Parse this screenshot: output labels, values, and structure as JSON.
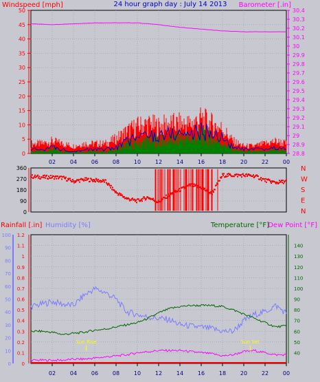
{
  "title": "24 hour graph day : July 14 2013",
  "colors": {
    "background": "#c8c8d0",
    "grid": "#9a9aa4",
    "windspeed": "#ff0000",
    "windgust_avg": "#0000cc",
    "windavg": "#008000",
    "barometer": "#ff00ff",
    "direction": "#ff0000",
    "rain": "#ff0000",
    "humidity": "#7b7bff",
    "temperature": "#006400",
    "dewpoint": "#ff00ff",
    "sun": "#ffff00",
    "axis_blue": "#0000ff"
  },
  "chart_data": [
    {
      "type": "line",
      "panel": "wind-barometer",
      "ylabel_left": "Windspeed [mph]",
      "ylabel_right": "Barometer [.in]",
      "ylim_left": [
        0,
        50
      ],
      "ylim_right": [
        28.8,
        30.4
      ],
      "ticks_left": [
        "0",
        "5",
        "10",
        "15",
        "20",
        "25",
        "30",
        "35",
        "40",
        "45",
        "50"
      ],
      "ticks_right": [
        "28.8",
        "28.9",
        "29",
        "29.1",
        "29.2",
        "29.3",
        "29.4",
        "29.5",
        "29.6",
        "29.7",
        "29.8",
        "29.9",
        "30",
        "30.1",
        "30.2",
        "30.3",
        "30.4"
      ],
      "x_ticks": [
        "02",
        "04",
        "06",
        "08",
        "10",
        "12",
        "14",
        "16",
        "18",
        "20",
        "22",
        "00"
      ],
      "x_range_hours": [
        0,
        24
      ],
      "series": [
        {
          "name": "Windspeed",
          "axis": "left",
          "color": "windspeed",
          "x": [
            0,
            1,
            2,
            3,
            4,
            5,
            6,
            7,
            8,
            9,
            10,
            11,
            12,
            13,
            14,
            15,
            16,
            17,
            18,
            19,
            20,
            21,
            22,
            23,
            24
          ],
          "values": [
            2,
            2,
            3,
            2,
            1,
            2,
            2,
            2,
            3,
            6,
            8,
            9,
            9,
            10,
            10,
            10,
            11,
            10,
            8,
            3,
            2,
            2,
            2,
            3,
            2
          ]
        },
        {
          "name": "Gust",
          "axis": "left",
          "color": "windspeed",
          "x": [
            0,
            1,
            2,
            3,
            4,
            5,
            6,
            7,
            8,
            9,
            10,
            11,
            12,
            13,
            14,
            15,
            16,
            17,
            18,
            19,
            20,
            21,
            22,
            23,
            24
          ],
          "values": [
            4,
            4,
            5,
            4,
            3,
            4,
            4,
            4,
            6,
            9,
            11,
            12,
            11,
            12,
            12,
            12,
            14,
            12,
            10,
            5,
            3,
            3,
            4,
            5,
            4
          ]
        },
        {
          "name": "Average",
          "axis": "left",
          "color": "windgust_avg",
          "x": [
            0,
            1,
            2,
            3,
            4,
            5,
            6,
            7,
            8,
            9,
            10,
            11,
            12,
            13,
            14,
            15,
            16,
            17,
            18,
            19,
            20,
            21,
            22,
            23,
            24
          ],
          "values": [
            1,
            1,
            2,
            1,
            1,
            1,
            1,
            1,
            2,
            4,
            5,
            6,
            6,
            6,
            7,
            7,
            8,
            7,
            5,
            2,
            1,
            1,
            1,
            2,
            1
          ]
        },
        {
          "name": "Barometer",
          "axis": "right",
          "color": "barometer",
          "x": [
            0,
            2,
            4,
            6,
            8,
            10,
            12,
            14,
            16,
            18,
            20,
            22,
            24
          ],
          "values": [
            30.25,
            30.24,
            30.25,
            30.26,
            30.26,
            30.26,
            30.24,
            30.21,
            30.19,
            30.17,
            30.16,
            30.16,
            30.16
          ]
        }
      ]
    },
    {
      "type": "scatter",
      "panel": "wind-direction",
      "ylim": [
        0,
        360
      ],
      "ticks_left": [
        "0",
        "90",
        "180",
        "270",
        "360"
      ],
      "ticks_right": [
        "N",
        "W",
        "S",
        "E",
        "N"
      ],
      "x_range_hours": [
        0,
        24
      ],
      "series": [
        {
          "name": "Direction",
          "color": "direction",
          "x": [
            0,
            1,
            2,
            3,
            4,
            5,
            6,
            7,
            8,
            9,
            10,
            11,
            12,
            13,
            14,
            15,
            16,
            17,
            18,
            19,
            20,
            21,
            22,
            23,
            24
          ],
          "values": [
            290,
            285,
            285,
            280,
            250,
            265,
            260,
            250,
            160,
            110,
            90,
            120,
            80,
            140,
            180,
            220,
            200,
            150,
            300,
            300,
            300,
            295,
            260,
            240,
            250
          ]
        }
      ]
    },
    {
      "type": "line",
      "panel": "rain-humidity-temperature",
      "ylabel_left_1": "Rainfall [.in]",
      "ylabel_left_2": "Humidity [%]",
      "ylabel_right_1": "Temperature [°F]",
      "ylabel_right_2": "Dew Point [°F]",
      "ylim_rain": [
        0,
        1.2
      ],
      "ylim_humidity": [
        0,
        100
      ],
      "ylim_temperature": [
        30,
        150
      ],
      "ticks_rain": [
        "0",
        "0.1",
        "0.2",
        "0.3",
        "0.4",
        "0.5",
        "0.6",
        "0.7",
        "0.8",
        "0.9",
        "1",
        "1.1",
        "1.2"
      ],
      "ticks_humidity": [
        "0",
        "10",
        "20",
        "30",
        "40",
        "50",
        "60",
        "70",
        "80",
        "90",
        "100"
      ],
      "ticks_temperature": [
        "40",
        "50",
        "60",
        "70",
        "80",
        "90",
        "100",
        "110",
        "120",
        "130",
        "140"
      ],
      "x_ticks": [
        "02",
        "04",
        "06",
        "08",
        "10",
        "12",
        "14",
        "16",
        "18",
        "20",
        "22",
        "00"
      ],
      "x_range_hours": [
        0,
        24
      ],
      "annotations": [
        {
          "label": "Sun Rise",
          "hour": 5.2
        },
        {
          "label": "Sun Set",
          "hour": 20.6
        }
      ],
      "series": [
        {
          "name": "Humidity",
          "axis": "humidity",
          "color": "humidity",
          "x": [
            0,
            1,
            2,
            3,
            4,
            5,
            6,
            7,
            8,
            9,
            10,
            11,
            12,
            13,
            14,
            15,
            16,
            17,
            18,
            19,
            20,
            21,
            22,
            23,
            24
          ],
          "values": [
            44,
            46,
            48,
            46,
            45,
            53,
            58,
            55,
            50,
            40,
            38,
            36,
            35,
            34,
            30,
            29,
            28,
            27,
            25,
            25,
            33,
            38,
            40,
            45,
            39
          ]
        },
        {
          "name": "Temperature",
          "axis": "temperature",
          "color": "temperature",
          "x": [
            0,
            1,
            2,
            3,
            4,
            5,
            6,
            7,
            8,
            9,
            10,
            11,
            12,
            13,
            14,
            15,
            16,
            17,
            18,
            19,
            20,
            21,
            22,
            23,
            24
          ],
          "values": [
            60,
            60,
            59,
            57,
            58,
            59,
            61,
            62,
            64,
            66,
            68,
            72,
            77,
            81,
            83,
            84,
            84,
            84,
            83,
            80,
            76,
            72,
            68,
            64,
            65
          ]
        },
        {
          "name": "Dew Point",
          "axis": "temperature",
          "color": "dewpoint",
          "x": [
            0,
            1,
            2,
            3,
            4,
            5,
            6,
            7,
            8,
            9,
            10,
            11,
            12,
            13,
            14,
            15,
            16,
            17,
            18,
            19,
            20,
            21,
            22,
            23,
            24
          ],
          "values": [
            33,
            33,
            33,
            33,
            34,
            34,
            35,
            36,
            37,
            38,
            40,
            41,
            42,
            42,
            42,
            41,
            40,
            39,
            37,
            38,
            41,
            42,
            40,
            38,
            38
          ]
        },
        {
          "name": "Rainfall",
          "axis": "rain",
          "color": "rain",
          "x": [
            0,
            24
          ],
          "values": [
            0,
            0
          ]
        }
      ]
    }
  ]
}
